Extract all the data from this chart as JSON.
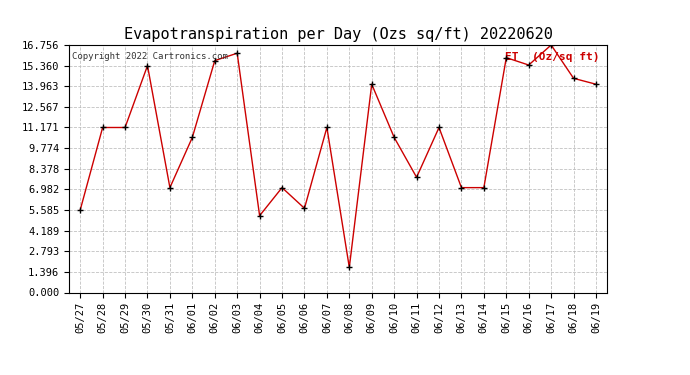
{
  "title": "Evapotranspiration per Day (Ozs sq/ft) 20220620",
  "legend_label": "ET  (Oz/sq ft)",
  "copyright": "Copyright 2022 Cartronics.com",
  "dates": [
    "05/27",
    "05/28",
    "05/29",
    "05/30",
    "05/31",
    "06/01",
    "06/02",
    "06/03",
    "06/04",
    "06/05",
    "06/06",
    "06/07",
    "06/08",
    "06/09",
    "06/10",
    "06/11",
    "06/12",
    "06/13",
    "06/14",
    "06/15",
    "06/16",
    "06/17",
    "06/18",
    "06/19"
  ],
  "values": [
    5.585,
    11.171,
    11.171,
    15.36,
    7.1,
    10.5,
    15.7,
    16.2,
    5.2,
    7.1,
    5.7,
    11.171,
    1.7,
    14.1,
    10.5,
    7.8,
    11.171,
    7.1,
    7.1,
    15.9,
    15.4,
    16.756,
    14.5,
    14.1
  ],
  "yticks": [
    0.0,
    1.396,
    2.793,
    4.189,
    5.585,
    6.982,
    8.378,
    9.774,
    11.171,
    12.567,
    13.963,
    15.36,
    16.756
  ],
  "ylim": [
    0.0,
    16.756
  ],
  "line_color": "#cc0000",
  "marker_color": "#000000",
  "bg_color": "#ffffff",
  "grid_color": "#bbbbbb",
  "title_fontsize": 11,
  "tick_fontsize": 7.5,
  "legend_color": "#cc0000",
  "copyright_color": "#333333"
}
